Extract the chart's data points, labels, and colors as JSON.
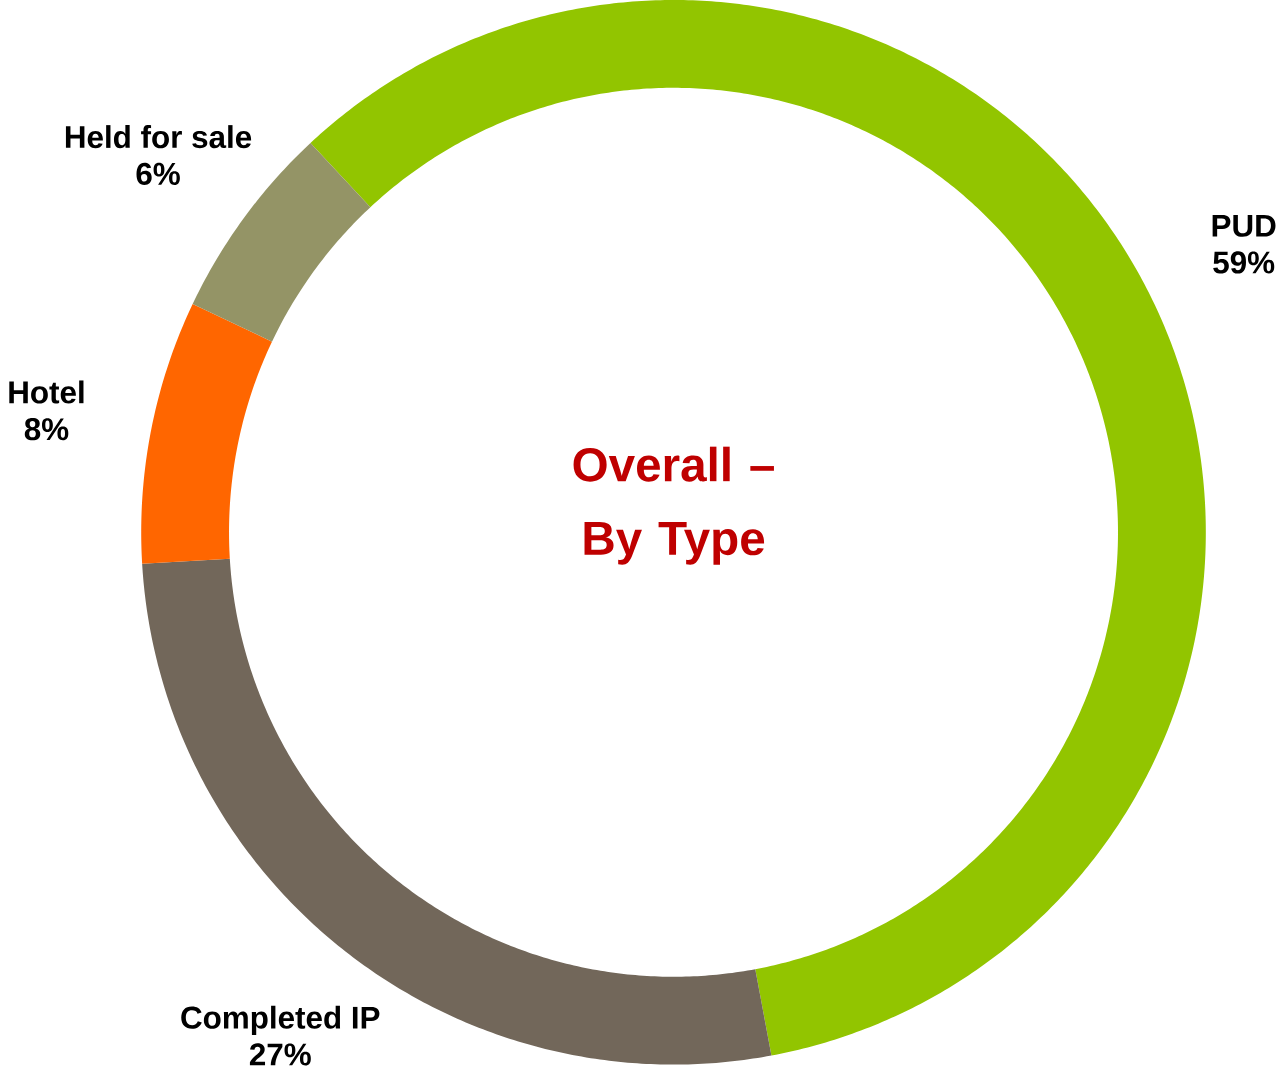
{
  "chart_data": {
    "type": "donut",
    "title": "Overall – By Type",
    "categories": [
      "PUD",
      "Completed IP",
      "Hotel",
      "Held for sale"
    ],
    "values": [
      59,
      27,
      8,
      6
    ],
    "value_labels": [
      "59%",
      "27%",
      "8%",
      "6%"
    ],
    "colors": [
      "#92c500",
      "#72675a",
      "#ff6600",
      "#949466"
    ]
  }
}
